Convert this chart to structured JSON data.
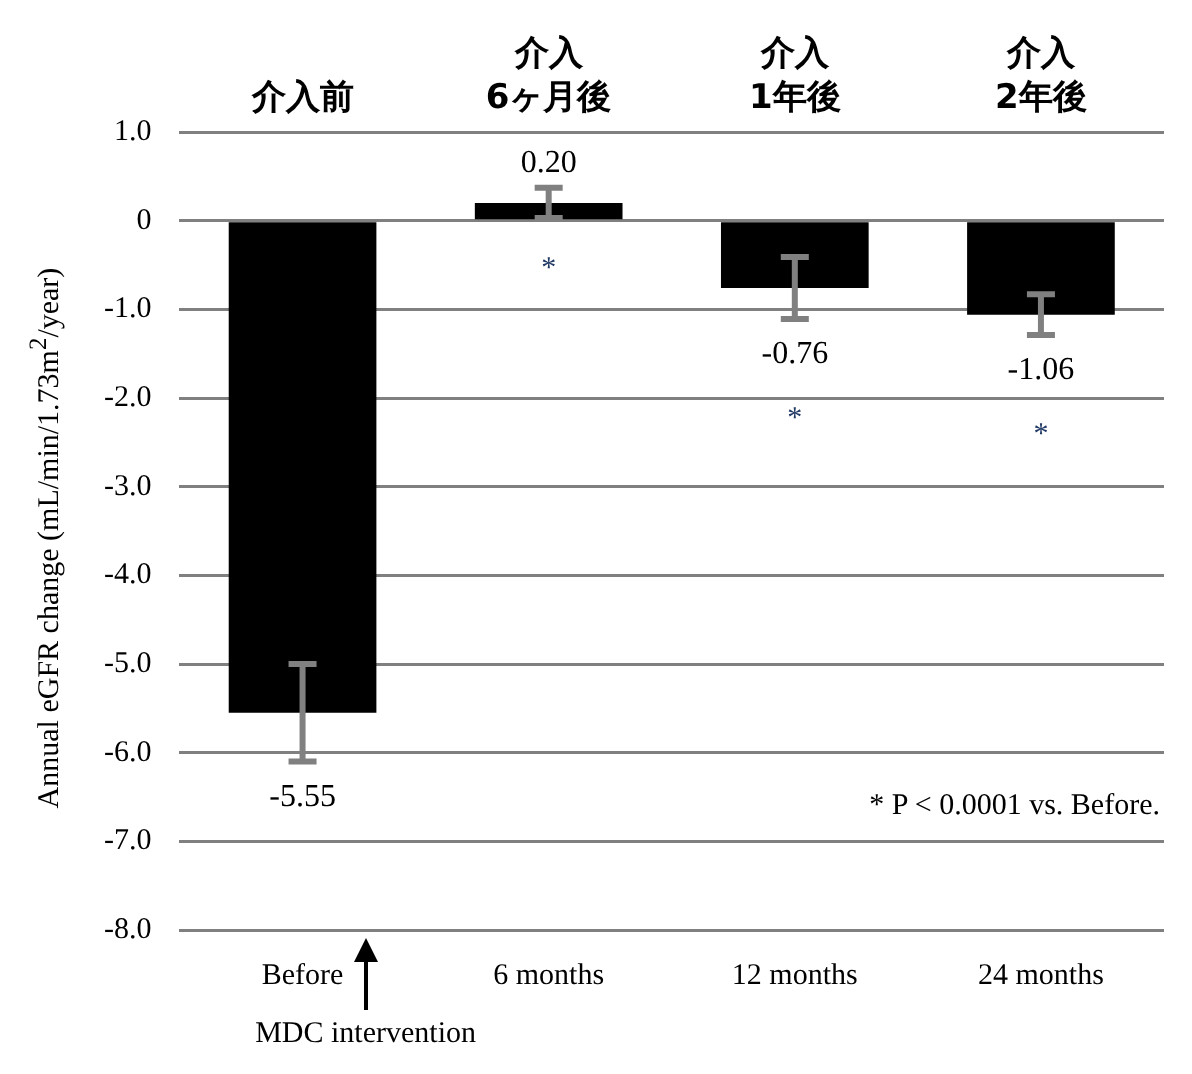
{
  "chart_data": {
    "type": "bar",
    "ylabel": "Annual eGFR change (mL/min/1.73m$^{2}$/year)",
    "categories": [
      "Before",
      "6 months",
      "12 months",
      "24 months"
    ],
    "values": [
      -5.55,
      0.2,
      -0.76,
      -1.06
    ],
    "value_labels": [
      "-5.55",
      "0.20",
      "-0.76",
      "-1.06"
    ],
    "errors": [
      0.55,
      0.17,
      0.35,
      0.23
    ],
    "color": "#000000",
    "ylim": [
      -8,
      1
    ],
    "yticks": [
      {
        "value": 1,
        "label": "1.0"
      },
      0,
      {
        "value": -1,
        "label": "-1.0"
      },
      {
        "value": -2,
        "label": "-2.0"
      },
      {
        "value": -3,
        "label": "-3.0"
      },
      {
        "value": -4,
        "label": "-4.0"
      },
      {
        "value": -5,
        "label": "-5.0"
      },
      {
        "value": -6,
        "label": "-6.0"
      },
      {
        "value": -7,
        "label": "-7.0"
      },
      {
        "value": -8,
        "label": "-8.0"
      }
    ],
    "grid": "y",
    "annotations": [
      "介入前",
      "介入\n6ヶ月後",
      "介入\n1年後",
      "介入\n2年後",
      "*",
      "*",
      "*",
      "* P < 0.0001 vs. Before.",
      "MDC intervention"
    ]
  }
}
